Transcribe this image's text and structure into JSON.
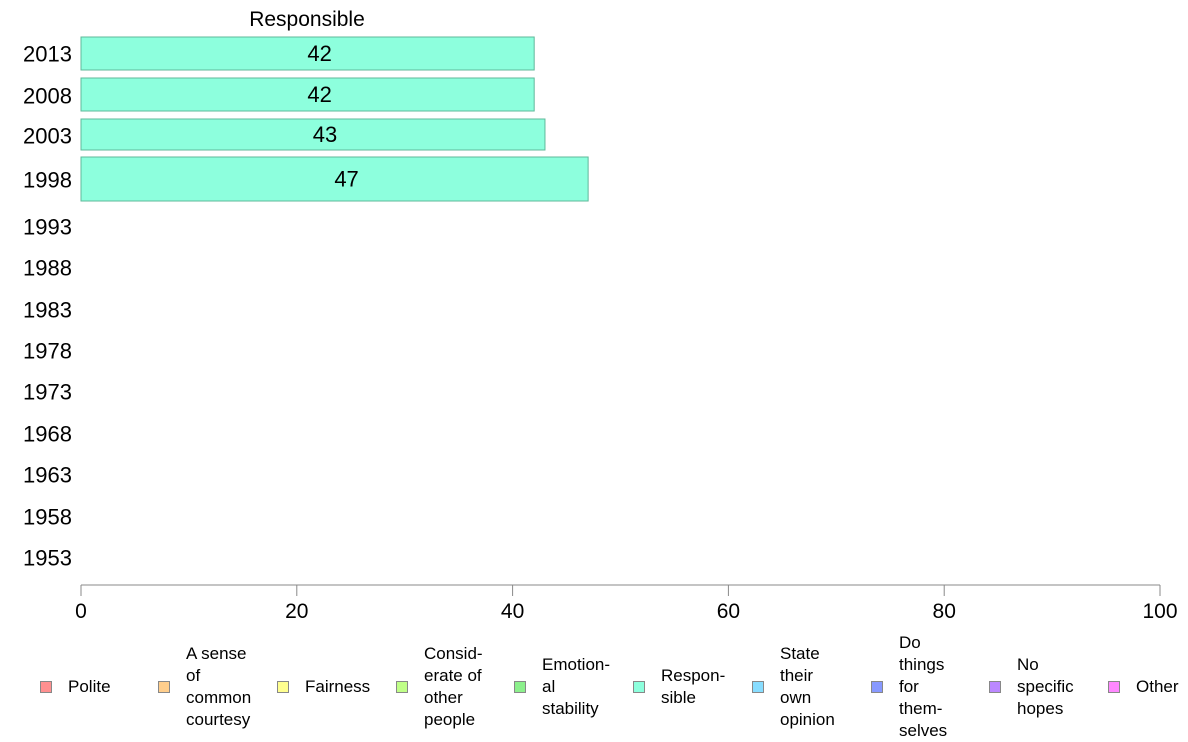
{
  "chart_data": {
    "type": "bar",
    "orientation": "horizontal",
    "title": "Responsible",
    "xlim": [
      0,
      100
    ],
    "x_ticks": [
      0,
      20,
      40,
      60,
      80,
      100
    ],
    "categories": [
      "2013",
      "2008",
      "2003",
      "1998",
      "1993",
      "1988",
      "1983",
      "1978",
      "1973",
      "1968",
      "1963",
      "1958",
      "1953"
    ],
    "series": [
      {
        "name": "Respon-\nsible",
        "values": [
          42,
          42,
          43,
          47,
          null,
          null,
          null,
          null,
          null,
          null,
          null,
          null,
          null
        ],
        "color": "#8dffdd"
      }
    ],
    "grid": false
  },
  "legend": {
    "placement": "bottom",
    "items": [
      {
        "label": "Polite",
        "color": "#ff9090"
      },
      {
        "label": "A sense\nof\ncommon\ncourtesy",
        "color": "#ffce8c"
      },
      {
        "label": "Fairness",
        "color": "#ffff90"
      },
      {
        "label": "Consid-\nerate of\nother\npeople",
        "color": "#c0ff88"
      },
      {
        "label": "Emotion-\nal\nstability",
        "color": "#8cf08c"
      },
      {
        "label": "Respon-\nsible",
        "color": "#8dffdd"
      },
      {
        "label": "State\ntheir\nown\nopinion",
        "color": "#88ddff"
      },
      {
        "label": "Do\nthings\nfor\nthem-\nselves",
        "color": "#8899ff"
      },
      {
        "label": "No\nspecific\nhopes",
        "color": "#bb88ff"
      },
      {
        "label": "Other",
        "color": "#ff88ff"
      }
    ]
  }
}
